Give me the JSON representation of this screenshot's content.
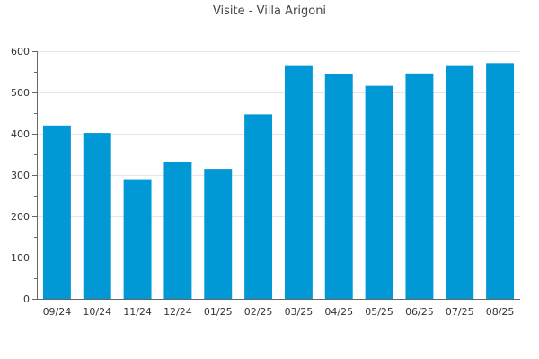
{
  "chart_data": {
    "type": "bar",
    "title": "Visite - Villa Arigoni",
    "xlabel": "",
    "ylabel": "",
    "categories": [
      "09/24",
      "10/24",
      "11/24",
      "12/24",
      "01/25",
      "02/25",
      "03/25",
      "04/25",
      "05/25",
      "06/25",
      "07/25",
      "08/25"
    ],
    "values": [
      420,
      402,
      290,
      331,
      315,
      447,
      566,
      544,
      516,
      546,
      566,
      571
    ],
    "ylim": [
      0,
      600
    ],
    "yticks": [
      0,
      100,
      200,
      300,
      400,
      500,
      600
    ],
    "grid": true,
    "legend": "none",
    "bar_color": "#0099d6"
  }
}
